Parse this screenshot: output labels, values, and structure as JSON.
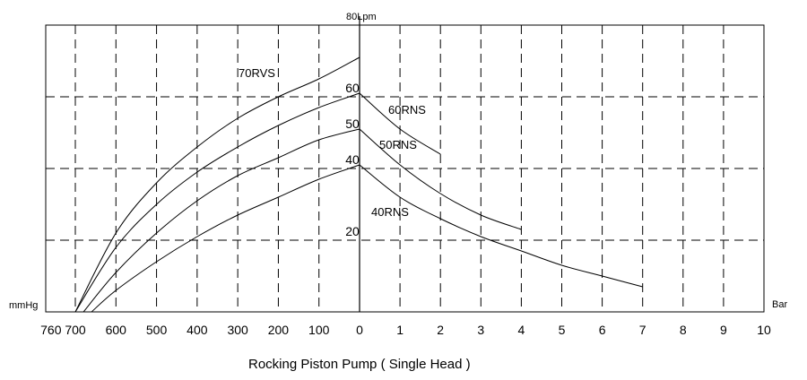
{
  "chart_data": {
    "type": "line",
    "title": "Rocking Piston Pump ( Single Head )",
    "left_axis": {
      "label": "mmHg",
      "ticks": [
        760,
        700,
        600,
        500,
        400,
        300,
        200,
        100,
        0
      ],
      "range": [
        760,
        0
      ]
    },
    "right_axis": {
      "label": "Bar",
      "ticks": [
        0,
        1,
        2,
        3,
        4,
        5,
        6,
        7,
        8,
        9,
        10
      ],
      "range": [
        0,
        10
      ]
    },
    "y_axis": {
      "label": "80Lpm",
      "unit": "Lpm",
      "ticks": [
        20,
        40,
        50,
        60
      ],
      "range": [
        0,
        80
      ]
    },
    "grid": true,
    "vacuum_series": [
      {
        "name": "70RVS",
        "points": [
          [
            700,
            0
          ],
          [
            600,
            22
          ],
          [
            500,
            36
          ],
          [
            400,
            46
          ],
          [
            300,
            54
          ],
          [
            200,
            60
          ],
          [
            100,
            65
          ],
          [
            0,
            71
          ]
        ]
      },
      {
        "name": "60RNS",
        "points": [
          [
            700,
            0
          ],
          [
            600,
            18
          ],
          [
            500,
            30
          ],
          [
            400,
            39
          ],
          [
            300,
            46
          ],
          [
            200,
            52
          ],
          [
            100,
            57
          ],
          [
            0,
            61
          ]
        ]
      },
      {
        "name": "50RNS",
        "points": [
          [
            680,
            0
          ],
          [
            600,
            11
          ],
          [
            500,
            22
          ],
          [
            400,
            31
          ],
          [
            300,
            38
          ],
          [
            200,
            43
          ],
          [
            100,
            48
          ],
          [
            0,
            51
          ]
        ]
      },
      {
        "name": "40RNS",
        "points": [
          [
            660,
            0
          ],
          [
            600,
            6
          ],
          [
            500,
            14
          ],
          [
            400,
            21
          ],
          [
            300,
            27
          ],
          [
            200,
            32
          ],
          [
            100,
            37
          ],
          [
            0,
            41
          ]
        ]
      }
    ],
    "pressure_series": [
      {
        "name": "60RNS",
        "points": [
          [
            0,
            61
          ],
          [
            1,
            51
          ],
          [
            2,
            44
          ]
        ]
      },
      {
        "name": "50RNS",
        "points": [
          [
            0,
            51
          ],
          [
            1,
            41
          ],
          [
            2,
            33
          ],
          [
            3,
            27
          ],
          [
            4,
            23
          ]
        ]
      },
      {
        "name": "40RNS",
        "points": [
          [
            0,
            41
          ],
          [
            1,
            32
          ],
          [
            2,
            26
          ],
          [
            3,
            21
          ],
          [
            4,
            17
          ],
          [
            5,
            13
          ],
          [
            6,
            10
          ],
          [
            7,
            7
          ]
        ]
      }
    ]
  }
}
